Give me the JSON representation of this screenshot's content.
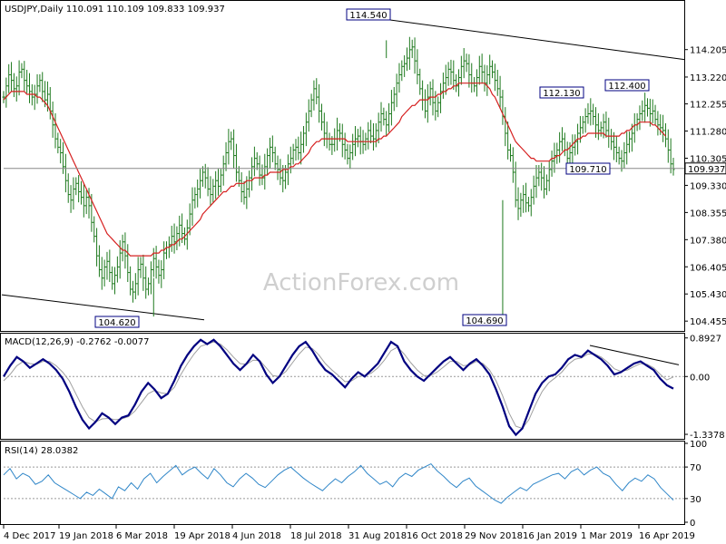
{
  "header": {
    "price": "USDJPY,Daily  110.091 110.109 109.833 109.937",
    "macd": "MACD(12,26,9) -0.2762 -0.0077",
    "rsi": "RSI(14) 28.0382"
  },
  "watermark": "ActionForex.com",
  "colors": {
    "price_bar": "#1e7a1e",
    "ma": "#d62020",
    "trendline": "#000000",
    "macd_line": "#000080",
    "signal_line": "#a0a0a0",
    "rsi_line": "#2f86c8",
    "label_border": "#000080",
    "label_text": "#000080",
    "grid_dotted": "#999999"
  },
  "chart_data": [
    {
      "type": "candlestick",
      "title": "USDJPY,Daily",
      "ylim": [
        104.2,
        115.4
      ],
      "y_ticks": [
        "114.205",
        "113.220",
        "112.255",
        "111.280",
        "110.305",
        "109.330",
        "108.355",
        "107.380",
        "106.405",
        "105.430",
        "104.455"
      ],
      "x_ticks": [
        "4 Dec 2017",
        "19 Jan 2018",
        "6 Mar 2018",
        "19 Apr 2018",
        "4 Jun 2018",
        "18 Jul 2018",
        "31 Aug 2018",
        "16 Oct 2018",
        "29 Nov 2018",
        "16 Jan 2019",
        "1 Mar 2019",
        "16 Apr 2019"
      ],
      "last_price": "109.937",
      "annotations": [
        {
          "text": "114.540",
          "value": 114.54
        },
        {
          "text": "104.620",
          "value": 104.62
        },
        {
          "text": "104.690",
          "value": 104.69
        },
        {
          "text": "112.130",
          "value": 112.13
        },
        {
          "text": "112.400",
          "value": 112.4
        },
        {
          "text": "109.710",
          "value": 109.71
        }
      ],
      "close_series": [
        112.5,
        112.9,
        113.3,
        113.1,
        112.8,
        112.9,
        113.4,
        113.5,
        113.1,
        112.9,
        112.7,
        112.5,
        112.6,
        112.9,
        113.1,
        112.7,
        112.4,
        112.6,
        112.0,
        111.5,
        111.0,
        110.7,
        110.5,
        110.0,
        109.5,
        109.0,
        108.8,
        109.2,
        109.4,
        109.1,
        108.9,
        108.6,
        108.9,
        108.6,
        108.0,
        107.5,
        106.8,
        106.3,
        106.0,
        106.4,
        106.6,
        106.2,
        105.8,
        106.1,
        106.4,
        106.9,
        107.3,
        106.8,
        106.2,
        105.6,
        105.5,
        105.8,
        106.3,
        106.5,
        106.0,
        105.6,
        105.8,
        106.3,
        106.7,
        106.4,
        106.1,
        106.3,
        106.9,
        107.1,
        107.2,
        107.5,
        107.3,
        107.6,
        107.9,
        107.6,
        107.4,
        107.8,
        108.3,
        108.8,
        109.0,
        109.2,
        109.5,
        109.8,
        109.6,
        109.2,
        109.0,
        109.3,
        109.5,
        109.3,
        109.7,
        110.1,
        110.5,
        110.9,
        111.0,
        110.4,
        109.8,
        109.5,
        109.1,
        108.9,
        109.2,
        109.6,
        110.0,
        110.3,
        110.1,
        109.7,
        109.6,
        110.0,
        110.4,
        110.7,
        110.5,
        110.1,
        109.9,
        109.6,
        109.5,
        109.8,
        110.1,
        110.3,
        110.6,
        110.7,
        110.5,
        110.8,
        111.2,
        111.6,
        112.0,
        112.4,
        112.8,
        112.5,
        112.0,
        111.6,
        111.2,
        111.0,
        110.8,
        110.8,
        111.0,
        111.3,
        111.2,
        110.8,
        110.6,
        110.3,
        110.5,
        110.8,
        111.0,
        111.1,
        110.9,
        110.8,
        111.0,
        111.3,
        111.1,
        111.0,
        111.3,
        111.6,
        111.9,
        111.7,
        111.5,
        111.9,
        112.3,
        112.6,
        113.0,
        113.3,
        113.6,
        113.7,
        113.9,
        114.2,
        114.3,
        113.8,
        113.3,
        112.8,
        112.4,
        112.0,
        112.5,
        112.8,
        112.3,
        112.0,
        112.3,
        112.7,
        113.0,
        113.2,
        113.5,
        113.4,
        113.1,
        112.9,
        113.2,
        113.6,
        113.8,
        113.7,
        113.3,
        113.0,
        112.9,
        113.2,
        113.6,
        113.4,
        113.0,
        113.3,
        113.6,
        113.4,
        113.1,
        112.8,
        112.5,
        111.8,
        111.2,
        110.6,
        110.4,
        109.8,
        108.8,
        108.5,
        108.8,
        109.0,
        108.7,
        108.6,
        108.9,
        109.3,
        109.6,
        109.8,
        109.6,
        109.2,
        109.5,
        109.9,
        110.2,
        110.4,
        110.6,
        110.9,
        111.0,
        110.6,
        110.3,
        110.5,
        110.7,
        110.9,
        111.2,
        111.4,
        111.6,
        111.8,
        111.9,
        112.0,
        111.8,
        111.5,
        111.3,
        111.4,
        111.6,
        111.3,
        111.1,
        110.9,
        110.7,
        110.5,
        110.3,
        110.2,
        110.5,
        110.8,
        111.0,
        111.2,
        111.5,
        111.7,
        111.9,
        112.0,
        112.2,
        112.1,
        111.9,
        112.0,
        111.7,
        111.5,
        111.4,
        111.3,
        111.0,
        110.6,
        110.1,
        109.9
      ],
      "ma_series": [
        112.4,
        112.5,
        112.6,
        112.7,
        112.7,
        112.7,
        112.7,
        112.7,
        112.7,
        112.6,
        112.6,
        112.6,
        112.6,
        112.5,
        112.5,
        112.4,
        112.3,
        112.2,
        112.0,
        111.8,
        111.6,
        111.4,
        111.2,
        111.0,
        110.8,
        110.6,
        110.4,
        110.2,
        110.0,
        109.8,
        109.6,
        109.4,
        109.2,
        109.0,
        108.8,
        108.6,
        108.4,
        108.2,
        108.0,
        107.8,
        107.6,
        107.5,
        107.4,
        107.3,
        107.2,
        107.1,
        107.0,
        107.0,
        106.9,
        106.8,
        106.8,
        106.8,
        106.8,
        106.8,
        106.8,
        106.8,
        106.8,
        106.8,
        106.9,
        106.9,
        106.9,
        107.0,
        107.0,
        107.1,
        107.1,
        107.2,
        107.2,
        107.3,
        107.4,
        107.4,
        107.5,
        107.6,
        107.7,
        107.8,
        107.9,
        108.0,
        108.1,
        108.3,
        108.4,
        108.5,
        108.6,
        108.7,
        108.8,
        108.9,
        109.0,
        109.1,
        109.1,
        109.2,
        109.3,
        109.3,
        109.4,
        109.4,
        109.4,
        109.4,
        109.5,
        109.5,
        109.5,
        109.6,
        109.6,
        109.6,
        109.6,
        109.7,
        109.7,
        109.8,
        109.8,
        109.8,
        109.8,
        109.8,
        109.9,
        109.9,
        109.9,
        110.0,
        110.0,
        110.1,
        110.1,
        110.2,
        110.3,
        110.4,
        110.5,
        110.7,
        110.8,
        110.9,
        110.9,
        111.0,
        111.0,
        111.0,
        111.0,
        111.0,
        111.0,
        111.0,
        111.0,
        111.0,
        111.0,
        110.9,
        110.9,
        110.9,
        110.9,
        110.9,
        110.9,
        110.9,
        110.9,
        110.9,
        110.9,
        110.9,
        110.9,
        111.0,
        111.0,
        111.1,
        111.1,
        111.2,
        111.3,
        111.4,
        111.5,
        111.6,
        111.8,
        111.9,
        112.0,
        112.1,
        112.2,
        112.2,
        112.3,
        112.4,
        112.4,
        112.4,
        112.4,
        112.5,
        112.5,
        112.5,
        112.6,
        112.6,
        112.7,
        112.7,
        112.8,
        112.8,
        112.9,
        112.9,
        113.0,
        113.0,
        113.0,
        113.0,
        113.0,
        113.0,
        113.0,
        113.0,
        113.0,
        113.0,
        113.0,
        112.9,
        112.8,
        112.6,
        112.5,
        112.3,
        112.1,
        111.9,
        111.7,
        111.5,
        111.3,
        111.1,
        110.9,
        110.8,
        110.7,
        110.6,
        110.5,
        110.4,
        110.3,
        110.3,
        110.2,
        110.2,
        110.2,
        110.2,
        110.2,
        110.2,
        110.3,
        110.3,
        110.4,
        110.4,
        110.5,
        110.6,
        110.6,
        110.7,
        110.8,
        110.9,
        111.0,
        111.0,
        111.1,
        111.1,
        111.2,
        111.2,
        111.2,
        111.2,
        111.2,
        111.2,
        111.2,
        111.1,
        111.1,
        111.1,
        111.1,
        111.1,
        111.1,
        111.2,
        111.2,
        111.3,
        111.3,
        111.4,
        111.5,
        111.5,
        111.6,
        111.6,
        111.6,
        111.6,
        111.6,
        111.5,
        111.5,
        111.4,
        111.3,
        111.2,
        111.1
      ]
    },
    {
      "type": "line",
      "title": "MACD(12,26,9) -0.2762 -0.0077",
      "ylim": [
        -1.4,
        0.95
      ],
      "y_ticks": [
        "0.8927",
        "0.00",
        "-1.3378"
      ],
      "series": [
        {
          "name": "MACD",
          "values": [
            0.0,
            0.25,
            0.45,
            0.35,
            0.2,
            0.3,
            0.4,
            0.3,
            0.15,
            -0.05,
            -0.35,
            -0.7,
            -1.0,
            -1.2,
            -1.05,
            -0.85,
            -0.95,
            -1.1,
            -0.95,
            -0.9,
            -0.65,
            -0.35,
            -0.15,
            -0.3,
            -0.5,
            -0.4,
            -0.1,
            0.25,
            0.5,
            0.7,
            0.85,
            0.75,
            0.85,
            0.7,
            0.5,
            0.3,
            0.15,
            0.3,
            0.5,
            0.35,
            0.05,
            -0.15,
            0.0,
            0.25,
            0.5,
            0.7,
            0.8,
            0.6,
            0.35,
            0.15,
            0.05,
            -0.1,
            -0.25,
            -0.05,
            0.1,
            0.0,
            0.15,
            0.3,
            0.55,
            0.8,
            0.7,
            0.35,
            0.15,
            0.0,
            -0.1,
            0.05,
            0.2,
            0.35,
            0.45,
            0.3,
            0.15,
            0.3,
            0.4,
            0.25,
            0.05,
            -0.3,
            -0.7,
            -1.15,
            -1.35,
            -1.2,
            -0.8,
            -0.4,
            -0.15,
            0.0,
            0.05,
            0.2,
            0.4,
            0.5,
            0.45,
            0.6,
            0.5,
            0.4,
            0.25,
            0.05,
            0.1,
            0.2,
            0.3,
            0.35,
            0.25,
            0.15,
            -0.05,
            -0.2,
            -0.28
          ]
        },
        {
          "name": "Signal",
          "values": [
            -0.1,
            0.05,
            0.25,
            0.35,
            0.3,
            0.28,
            0.35,
            0.35,
            0.25,
            0.1,
            -0.1,
            -0.4,
            -0.7,
            -0.95,
            -1.05,
            -0.98,
            -0.97,
            -1.0,
            -0.98,
            -0.93,
            -0.8,
            -0.6,
            -0.4,
            -0.32,
            -0.38,
            -0.4,
            -0.25,
            0.05,
            0.3,
            0.52,
            0.7,
            0.75,
            0.8,
            0.75,
            0.62,
            0.45,
            0.3,
            0.28,
            0.38,
            0.37,
            0.2,
            0.02,
            0.0,
            0.12,
            0.32,
            0.52,
            0.68,
            0.65,
            0.5,
            0.3,
            0.15,
            0.02,
            -0.12,
            -0.1,
            0.0,
            0.02,
            0.08,
            0.2,
            0.38,
            0.6,
            0.68,
            0.52,
            0.32,
            0.15,
            0.02,
            0.02,
            0.1,
            0.22,
            0.35,
            0.35,
            0.25,
            0.27,
            0.35,
            0.3,
            0.15,
            -0.1,
            -0.45,
            -0.85,
            -1.15,
            -1.2,
            -1.0,
            -0.65,
            -0.35,
            -0.15,
            -0.03,
            0.1,
            0.28,
            0.4,
            0.43,
            0.52,
            0.52,
            0.45,
            0.33,
            0.18,
            0.12,
            0.15,
            0.23,
            0.3,
            0.28,
            0.2,
            0.05,
            -0.08,
            -0.01
          ]
        }
      ]
    },
    {
      "type": "line",
      "title": "RSI(14) 28.0382",
      "ylim": [
        0,
        100
      ],
      "y_ticks": [
        "100",
        "70",
        "30",
        "0"
      ],
      "series": [
        {
          "name": "RSI",
          "values": [
            60,
            68,
            55,
            62,
            58,
            48,
            52,
            60,
            50,
            45,
            40,
            35,
            30,
            38,
            34,
            42,
            36,
            30,
            45,
            40,
            50,
            42,
            55,
            62,
            50,
            58,
            65,
            72,
            60,
            66,
            70,
            62,
            55,
            68,
            60,
            50,
            45,
            55,
            62,
            56,
            48,
            44,
            52,
            60,
            66,
            70,
            63,
            56,
            50,
            45,
            40,
            48,
            55,
            50,
            58,
            64,
            72,
            62,
            55,
            48,
            52,
            45,
            56,
            62,
            58,
            66,
            70,
            74,
            65,
            58,
            50,
            44,
            52,
            56,
            46,
            40,
            34,
            28,
            24,
            32,
            38,
            44,
            40,
            48,
            52,
            56,
            60,
            62,
            55,
            64,
            68,
            60,
            66,
            70,
            62,
            58,
            48,
            40,
            50,
            56,
            52,
            60,
            55,
            44,
            36,
            28
          ]
        }
      ]
    }
  ]
}
